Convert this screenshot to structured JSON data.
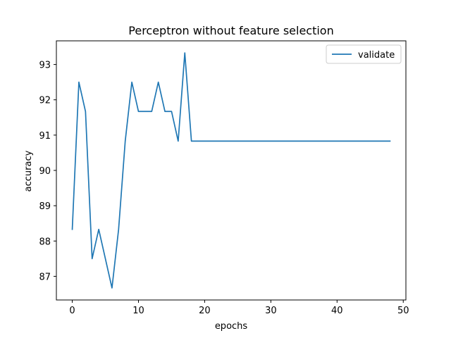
{
  "chart_data": {
    "type": "line",
    "title": "Perceptron without feature selection",
    "xlabel": "epochs",
    "ylabel": "accuracy",
    "xlim": [
      -2.4,
      50.4
    ],
    "ylim": [
      86.33,
      93.67
    ],
    "xticks": [
      0,
      10,
      20,
      30,
      40,
      50
    ],
    "yticks": [
      87,
      88,
      89,
      90,
      91,
      92,
      93
    ],
    "grid": false,
    "legend_position": "top-right",
    "series": [
      {
        "name": "validate",
        "color": "#1f77b4",
        "x": [
          0,
          1,
          2,
          3,
          4,
          5,
          6,
          7,
          8,
          9,
          10,
          11,
          12,
          13,
          14,
          15,
          16,
          17,
          18,
          19,
          20,
          21,
          22,
          23,
          24,
          25,
          26,
          27,
          28,
          29,
          30,
          31,
          32,
          33,
          34,
          35,
          36,
          37,
          38,
          39,
          40,
          41,
          42,
          43,
          44,
          45,
          46,
          47,
          48
        ],
        "values": [
          88.33,
          92.5,
          91.67,
          87.5,
          88.33,
          87.5,
          86.67,
          88.33,
          90.83,
          92.5,
          91.67,
          91.67,
          91.67,
          92.5,
          91.67,
          91.67,
          90.83,
          93.33,
          90.83,
          90.83,
          90.83,
          90.83,
          90.83,
          90.83,
          90.83,
          90.83,
          90.83,
          90.83,
          90.83,
          90.83,
          90.83,
          90.83,
          90.83,
          90.83,
          90.83,
          90.83,
          90.83,
          90.83,
          90.83,
          90.83,
          90.83,
          90.83,
          90.83,
          90.83,
          90.83,
          90.83,
          90.83,
          90.83,
          90.83
        ]
      }
    ]
  }
}
